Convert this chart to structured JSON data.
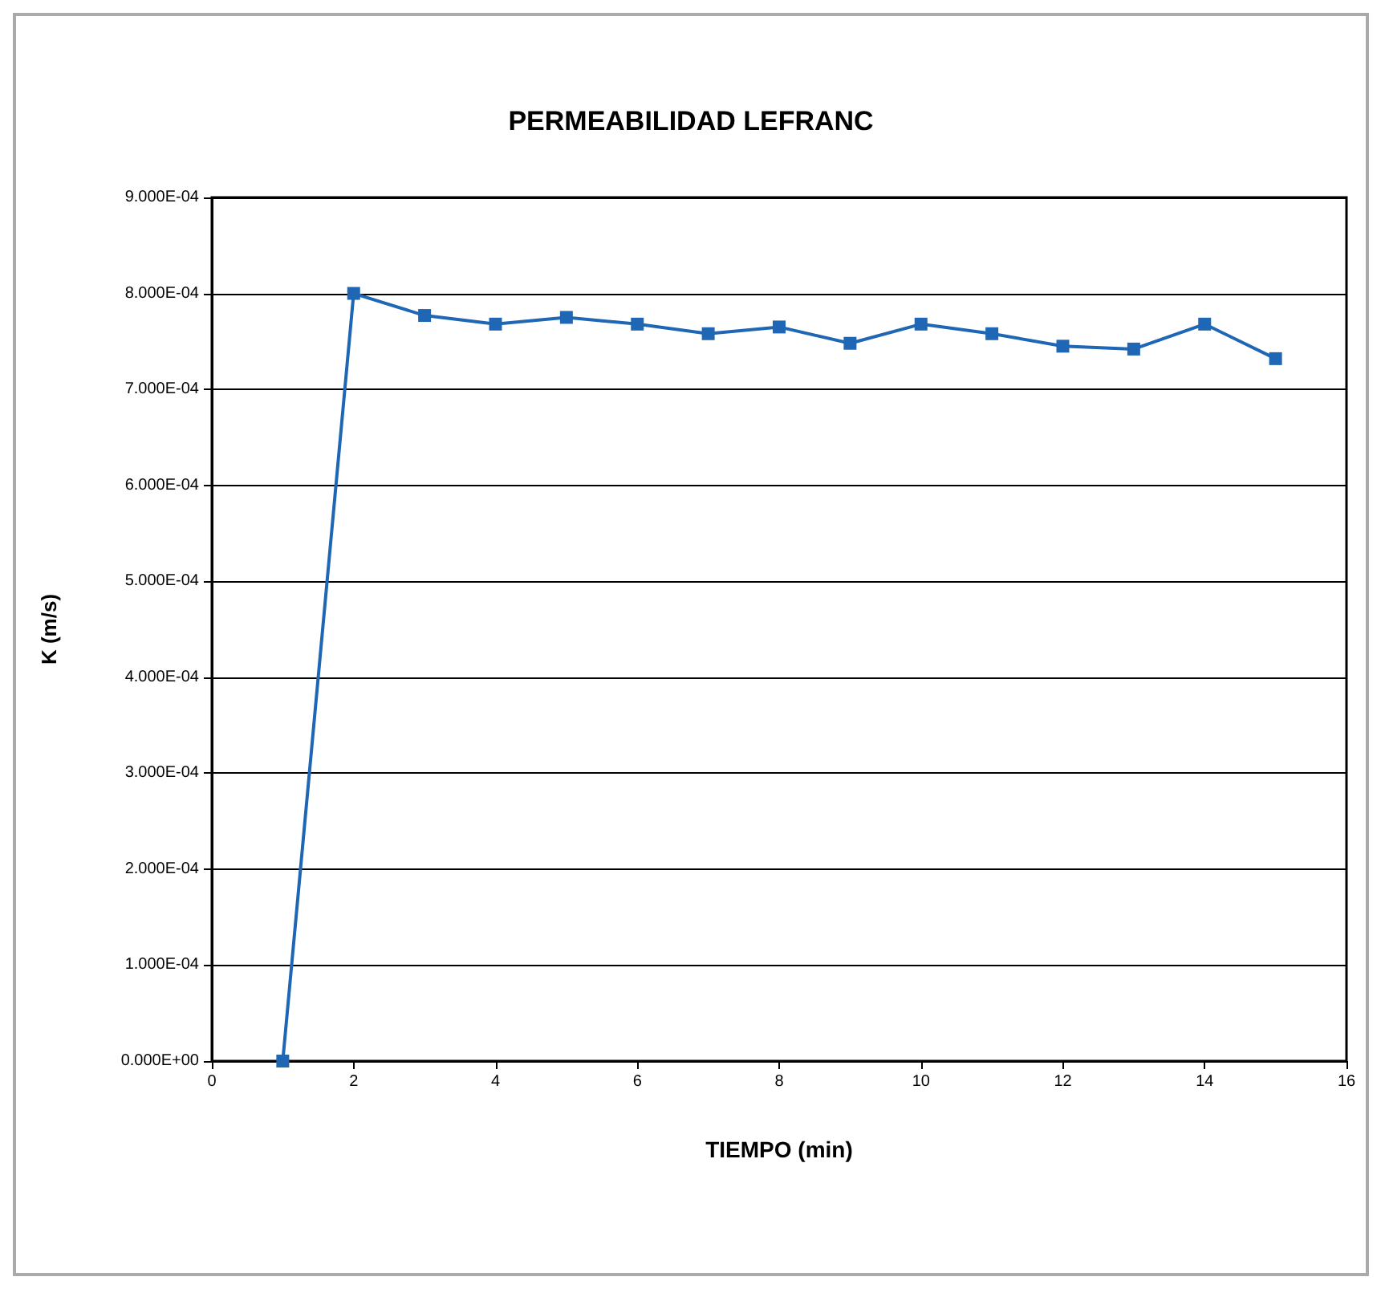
{
  "chart_data": {
    "type": "line",
    "title": "PERMEABILIDAD LEFRANC",
    "xlabel": "TIEMPO (min)",
    "ylabel": "K (m/s)",
    "x": [
      1,
      2,
      3,
      4,
      5,
      6,
      7,
      8,
      9,
      10,
      11,
      12,
      13,
      14,
      15
    ],
    "series": [
      {
        "color": "#1f66b5",
        "values": [
          0,
          0.0008,
          0.000777,
          0.000768,
          0.000775,
          0.000768,
          0.000758,
          0.000765,
          0.000748,
          0.000768,
          0.000758,
          0.000745,
          0.000742,
          0.000768,
          0.000732
        ]
      }
    ],
    "xlim": [
      0,
      16
    ],
    "xticks": [
      0,
      2,
      4,
      6,
      8,
      10,
      12,
      14,
      16
    ],
    "ylim": [
      0,
      0.0009
    ],
    "yticks": [
      {
        "value": 0,
        "label": "0.000E+00"
      },
      {
        "value": 0.0001,
        "label": "1.000E-04"
      },
      {
        "value": 0.0002,
        "label": "2.000E-04"
      },
      {
        "value": 0.0003,
        "label": "3.000E-04"
      },
      {
        "value": 0.0004,
        "label": "4.000E-04"
      },
      {
        "value": 0.0005,
        "label": "5.000E-04"
      },
      {
        "value": 0.0006,
        "label": "6.000E-04"
      },
      {
        "value": 0.0007,
        "label": "7.000E-04"
      },
      {
        "value": 0.0008,
        "label": "8.000E-04"
      },
      {
        "value": 0.0009,
        "label": "9.000E-04"
      }
    ],
    "grid": "y",
    "legend": false,
    "marker": "square",
    "line_style": "solid"
  }
}
